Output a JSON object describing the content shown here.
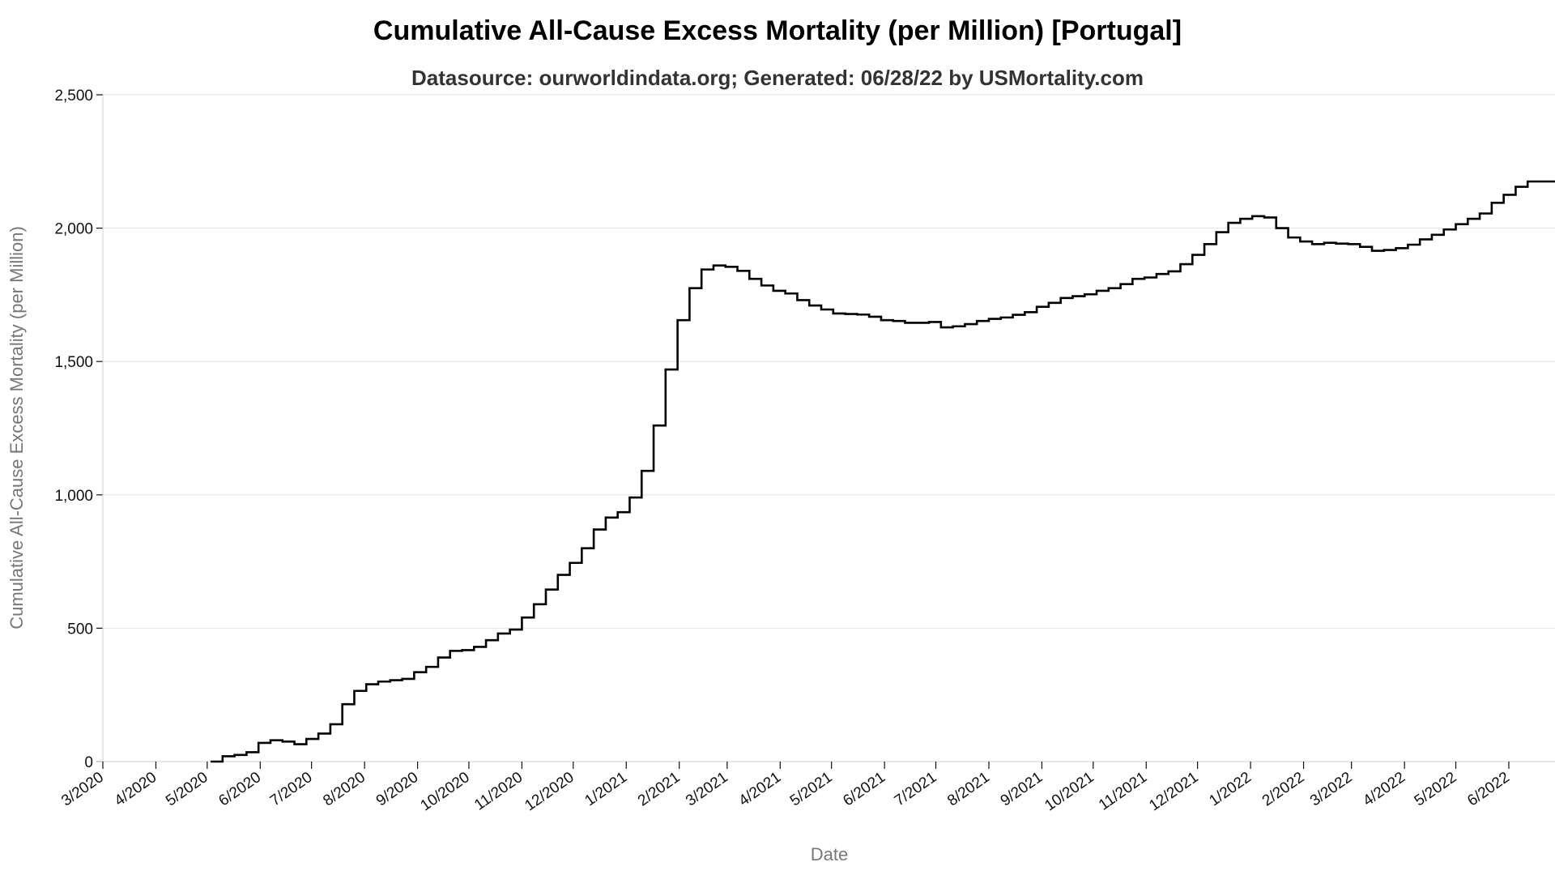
{
  "chart_data": {
    "type": "line",
    "step": true,
    "title": "Cumulative All-Cause Excess Mortality (per Million) [Portugal]",
    "subtitle": "Datasource: ourworldindata.org; Generated: 06/28/22 by USMortality.com",
    "xlabel": "Date",
    "ylabel": "Cumulative All-Cause Excess Mortality (per Million)",
    "x_range": [
      "2020-03-01",
      "2022-06-28"
    ],
    "ylim": [
      0,
      2500
    ],
    "y_ticks": [
      0,
      500,
      1000,
      1500,
      2000,
      2500
    ],
    "y_tick_labels": [
      "0",
      "500",
      "1,000",
      "1,500",
      "2,000",
      "2,500"
    ],
    "x_ticks": [
      "2020-03-01",
      "2020-04-01",
      "2020-05-01",
      "2020-06-01",
      "2020-07-01",
      "2020-08-01",
      "2020-09-01",
      "2020-10-01",
      "2020-11-01",
      "2020-12-01",
      "2021-01-01",
      "2021-02-01",
      "2021-03-01",
      "2021-04-01",
      "2021-05-01",
      "2021-06-01",
      "2021-07-01",
      "2021-08-01",
      "2021-09-01",
      "2021-10-01",
      "2021-11-01",
      "2021-12-01",
      "2022-01-01",
      "2022-02-01",
      "2022-03-01",
      "2022-04-01",
      "2022-05-01",
      "2022-06-01"
    ],
    "x_tick_labels": [
      "3/2020",
      "4/2020",
      "5/2020",
      "6/2020",
      "7/2020",
      "8/2020",
      "9/2020",
      "10/2020",
      "11/2020",
      "12/2020",
      "1/2021",
      "2/2021",
      "3/2021",
      "4/2021",
      "5/2021",
      "6/2021",
      "7/2021",
      "8/2021",
      "9/2021",
      "10/2021",
      "11/2021",
      "12/2021",
      "1/2022",
      "2/2022",
      "3/2022",
      "4/2022",
      "5/2022",
      "6/2022"
    ],
    "grid": true,
    "series": [
      {
        "points": [
          [
            "2020-05-03",
            0
          ],
          [
            "2020-05-10",
            20
          ],
          [
            "2020-05-17",
            25
          ],
          [
            "2020-05-24",
            35
          ],
          [
            "2020-05-31",
            70
          ],
          [
            "2020-06-07",
            80
          ],
          [
            "2020-06-14",
            75
          ],
          [
            "2020-06-21",
            65
          ],
          [
            "2020-06-28",
            85
          ],
          [
            "2020-07-05",
            105
          ],
          [
            "2020-07-12",
            140
          ],
          [
            "2020-07-19",
            215
          ],
          [
            "2020-07-26",
            265
          ],
          [
            "2020-08-02",
            290
          ],
          [
            "2020-08-09",
            300
          ],
          [
            "2020-08-16",
            305
          ],
          [
            "2020-08-23",
            310
          ],
          [
            "2020-08-30",
            335
          ],
          [
            "2020-09-06",
            355
          ],
          [
            "2020-09-13",
            390
          ],
          [
            "2020-09-20",
            415
          ],
          [
            "2020-09-27",
            418
          ],
          [
            "2020-10-04",
            430
          ],
          [
            "2020-10-11",
            455
          ],
          [
            "2020-10-18",
            480
          ],
          [
            "2020-10-25",
            495
          ],
          [
            "2020-11-01",
            540
          ],
          [
            "2020-11-08",
            590
          ],
          [
            "2020-11-15",
            645
          ],
          [
            "2020-11-22",
            700
          ],
          [
            "2020-11-29",
            745
          ],
          [
            "2020-12-06",
            800
          ],
          [
            "2020-12-13",
            870
          ],
          [
            "2020-12-20",
            915
          ],
          [
            "2020-12-27",
            935
          ],
          [
            "2021-01-03",
            990
          ],
          [
            "2021-01-10",
            1090
          ],
          [
            "2021-01-17",
            1260
          ],
          [
            "2021-01-24",
            1470
          ],
          [
            "2021-01-31",
            1655
          ],
          [
            "2021-02-07",
            1775
          ],
          [
            "2021-02-14",
            1845
          ],
          [
            "2021-02-21",
            1860
          ],
          [
            "2021-02-28",
            1855
          ],
          [
            "2021-03-07",
            1840
          ],
          [
            "2021-03-14",
            1810
          ],
          [
            "2021-03-21",
            1785
          ],
          [
            "2021-03-28",
            1765
          ],
          [
            "2021-04-04",
            1755
          ],
          [
            "2021-04-11",
            1730
          ],
          [
            "2021-04-18",
            1710
          ],
          [
            "2021-04-25",
            1695
          ],
          [
            "2021-05-02",
            1680
          ],
          [
            "2021-05-09",
            1678
          ],
          [
            "2021-05-16",
            1676
          ],
          [
            "2021-05-23",
            1668
          ],
          [
            "2021-05-30",
            1655
          ],
          [
            "2021-06-06",
            1652
          ],
          [
            "2021-06-13",
            1645
          ],
          [
            "2021-06-20",
            1645
          ],
          [
            "2021-06-27",
            1648
          ],
          [
            "2021-07-04",
            1628
          ],
          [
            "2021-07-11",
            1632
          ],
          [
            "2021-07-18",
            1640
          ],
          [
            "2021-07-25",
            1652
          ],
          [
            "2021-08-01",
            1660
          ],
          [
            "2021-08-08",
            1665
          ],
          [
            "2021-08-15",
            1675
          ],
          [
            "2021-08-22",
            1685
          ],
          [
            "2021-08-29",
            1705
          ],
          [
            "2021-09-05",
            1720
          ],
          [
            "2021-09-12",
            1738
          ],
          [
            "2021-09-19",
            1745
          ],
          [
            "2021-09-26",
            1752
          ],
          [
            "2021-10-03",
            1765
          ],
          [
            "2021-10-10",
            1775
          ],
          [
            "2021-10-17",
            1790
          ],
          [
            "2021-10-24",
            1810
          ],
          [
            "2021-10-31",
            1815
          ],
          [
            "2021-11-07",
            1828
          ],
          [
            "2021-11-14",
            1838
          ],
          [
            "2021-11-21",
            1865
          ],
          [
            "2021-11-28",
            1900
          ],
          [
            "2021-12-05",
            1940
          ],
          [
            "2021-12-12",
            1985
          ],
          [
            "2021-12-19",
            2020
          ],
          [
            "2021-12-26",
            2035
          ],
          [
            "2022-01-02",
            2045
          ],
          [
            "2022-01-09",
            2040
          ],
          [
            "2022-01-16",
            2000
          ],
          [
            "2022-01-23",
            1965
          ],
          [
            "2022-01-30",
            1950
          ],
          [
            "2022-02-06",
            1940
          ],
          [
            "2022-02-13",
            1945
          ],
          [
            "2022-02-20",
            1942
          ],
          [
            "2022-02-27",
            1940
          ],
          [
            "2022-03-06",
            1930
          ],
          [
            "2022-03-13",
            1915
          ],
          [
            "2022-03-20",
            1918
          ],
          [
            "2022-03-27",
            1925
          ],
          [
            "2022-04-03",
            1938
          ],
          [
            "2022-04-10",
            1958
          ],
          [
            "2022-04-17",
            1975
          ],
          [
            "2022-04-24",
            1995
          ],
          [
            "2022-05-01",
            2015
          ],
          [
            "2022-05-08",
            2035
          ],
          [
            "2022-05-15",
            2055
          ],
          [
            "2022-05-22",
            2095
          ],
          [
            "2022-05-29",
            2125
          ],
          [
            "2022-06-05",
            2155
          ],
          [
            "2022-06-12",
            2175
          ],
          [
            "2022-06-19",
            2175
          ],
          [
            "2022-06-28",
            2175
          ]
        ],
        "color": "#000000"
      }
    ]
  }
}
